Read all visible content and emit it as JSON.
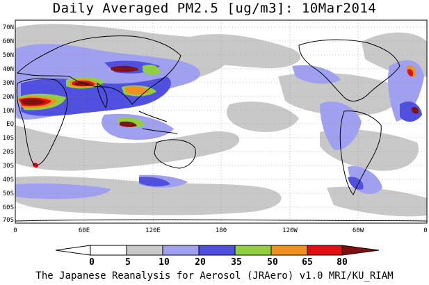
{
  "title": "Daily Averaged PM2.5 [ug/m3]: 10Mar2014",
  "footer": "The Japanese Reanalysis for Aerosol (JRAero) v1.0 MRI/KU_RIAM",
  "map": {
    "lat_labels": [
      "70N",
      "60N",
      "50N",
      "40N",
      "30N",
      "20N",
      "10N",
      "EQ",
      "10S",
      "20S",
      "30S",
      "40S",
      "50S",
      "60S",
      "70S"
    ],
    "lon_labels": [
      "0",
      "60E",
      "120E",
      "180",
      "120W",
      "60W",
      "0"
    ]
  },
  "colorbar": {
    "labels": [
      "0",
      "5",
      "10",
      "20",
      "35",
      "50",
      "65",
      "80"
    ],
    "colors": [
      "#ffffff",
      "#c8c8c8",
      "#a0a0f0",
      "#5050e0",
      "#90d040",
      "#f09020",
      "#e01010",
      "#801010"
    ]
  }
}
